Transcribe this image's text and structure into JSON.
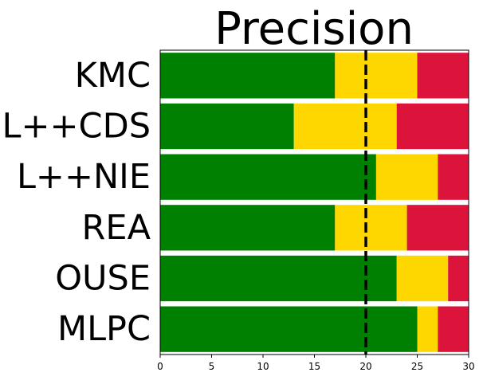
{
  "chart_data": {
    "type": "bar",
    "orientation": "horizontal",
    "stacked": true,
    "title": "Precision",
    "xlabel": "",
    "ylabel": "",
    "categories": [
      "KMC",
      "L++CDS",
      "L++NIE",
      "REA",
      "OUSE",
      "MLPC"
    ],
    "series": [
      {
        "color": "#008000",
        "values": [
          17,
          13,
          21,
          17,
          23,
          25
        ]
      },
      {
        "color": "#FFD700",
        "values": [
          8,
          10,
          6,
          7,
          5,
          2
        ]
      },
      {
        "color": "#DC143C",
        "values": [
          5,
          7,
          3,
          6,
          2,
          3
        ]
      }
    ],
    "xlim": [
      0,
      30
    ],
    "xticks": [
      0,
      5,
      10,
      15,
      20,
      25,
      30
    ],
    "reference_line": {
      "x": 20,
      "style": "dashed",
      "color": "#000000"
    },
    "grid": false,
    "legend": "none"
  }
}
